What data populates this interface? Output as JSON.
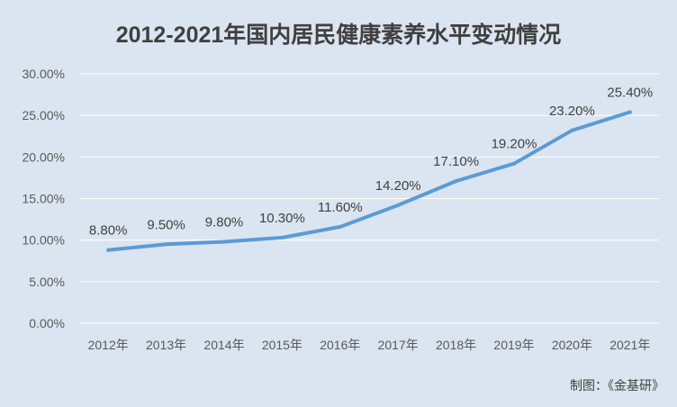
{
  "chart_data": {
    "type": "line",
    "title": "2012-2021年国内居民健康素养水平变动情况",
    "categories": [
      "2012年",
      "2013年",
      "2014年",
      "2015年",
      "2016年",
      "2017年",
      "2018年",
      "2019年",
      "2020年",
      "2021年"
    ],
    "series": [
      {
        "values": [
          8.8,
          9.5,
          9.8,
          10.3,
          11.6,
          14.2,
          17.1,
          19.2,
          23.2,
          25.4
        ],
        "labels": [
          "8.80%",
          "9.50%",
          "9.80%",
          "10.30%",
          "11.60%",
          "14.20%",
          "17.10%",
          "19.20%",
          "23.20%",
          "25.40%"
        ],
        "color": "#5b9bd5"
      }
    ],
    "yticks": [
      "0.00%",
      "5.00%",
      "10.00%",
      "15.00%",
      "20.00%",
      "25.00%",
      "30.00%"
    ],
    "ylim": [
      0,
      30
    ],
    "grid": true,
    "legend": "none"
  },
  "source_note": "制图：《金基研》",
  "colors": {
    "background": "#dbe5f1",
    "line": "#5b9bd5",
    "grid": "#ffffff"
  }
}
